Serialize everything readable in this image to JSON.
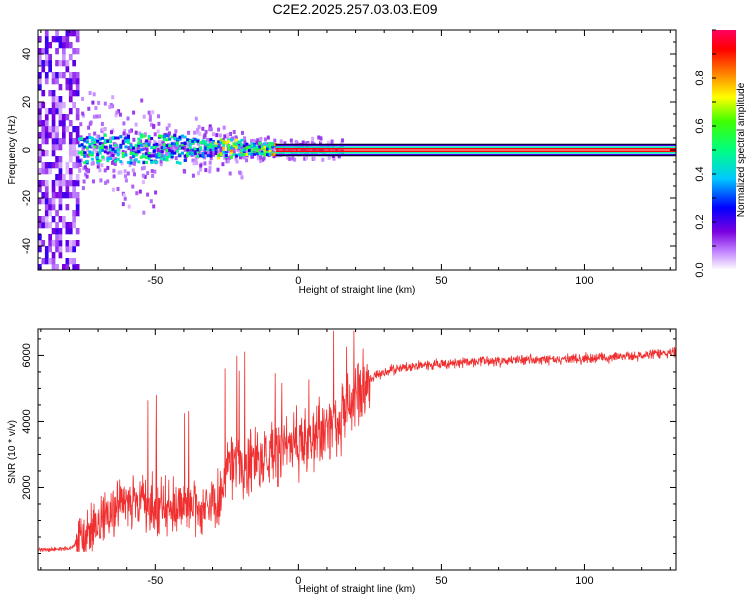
{
  "title": "C2E2.2025.257.03.03.E09",
  "colors": {
    "line": "#f03030",
    "frame": "#000000",
    "background": "#ffffff"
  },
  "chart_data": [
    {
      "type": "heatmap",
      "name": "spectrogram",
      "xlabel": "Height of straight line (km)",
      "ylabel": "Frequency (Hz)",
      "xlim": [
        -91,
        132
      ],
      "ylim": [
        -50,
        50
      ],
      "xticks": [
        -50,
        0,
        50,
        100
      ],
      "xtick_labels": [
        "-50",
        "0",
        "50",
        "100"
      ],
      "yticks": [
        40,
        20,
        0,
        -20,
        -40
      ],
      "ytick_labels": [
        "40",
        "20",
        "0",
        "-20",
        "-40"
      ],
      "colorbar": {
        "label": "Normalized spectral amplitude",
        "range": [
          0,
          1
        ],
        "ticks": [
          0.0,
          0.2,
          0.4,
          0.6,
          0.8
        ],
        "tick_labels": [
          "0.0",
          "0.2",
          "0.4",
          "0.6",
          "0.8"
        ]
      },
      "features": {
        "noise_region_x": [
          -91,
          -77
        ],
        "band_frequency_hz": 0,
        "band_halfwidth_hz": 2,
        "scatter_region_x": [
          -77,
          15
        ],
        "strong_band_start_x": -8
      }
    },
    {
      "type": "line",
      "name": "snr",
      "xlabel": "Height of straight line (km)",
      "ylabel": "SNR (10 * v/v)",
      "xlim": [
        -91,
        132
      ],
      "ylim": [
        -500,
        6800
      ],
      "xticks": [
        -50,
        0,
        50,
        100
      ],
      "xtick_labels": [
        "-50",
        "0",
        "50",
        "100"
      ],
      "yticks": [
        2000,
        4000,
        6000
      ],
      "ytick_labels": [
        "2000",
        "4000",
        "6000"
      ],
      "series": [
        {
          "name": "SNR",
          "x": [
            -91,
            -80,
            -75,
            -70,
            -65,
            -60,
            -55,
            -50,
            -45,
            -40,
            -35,
            -30,
            -27,
            -25,
            -20,
            -15,
            -10,
            -5,
            0,
            5,
            10,
            15,
            20,
            25,
            30,
            40,
            50,
            60,
            80,
            100,
            120,
            132
          ],
          "y": [
            100,
            150,
            400,
            900,
            1300,
            1500,
            1600,
            1400,
            1500,
            1400,
            1450,
            1500,
            1550,
            2600,
            2700,
            2800,
            3000,
            3200,
            3300,
            3500,
            3700,
            4200,
            4800,
            5300,
            5500,
            5700,
            5750,
            5800,
            5850,
            5900,
            6000,
            6100
          ]
        }
      ]
    }
  ]
}
